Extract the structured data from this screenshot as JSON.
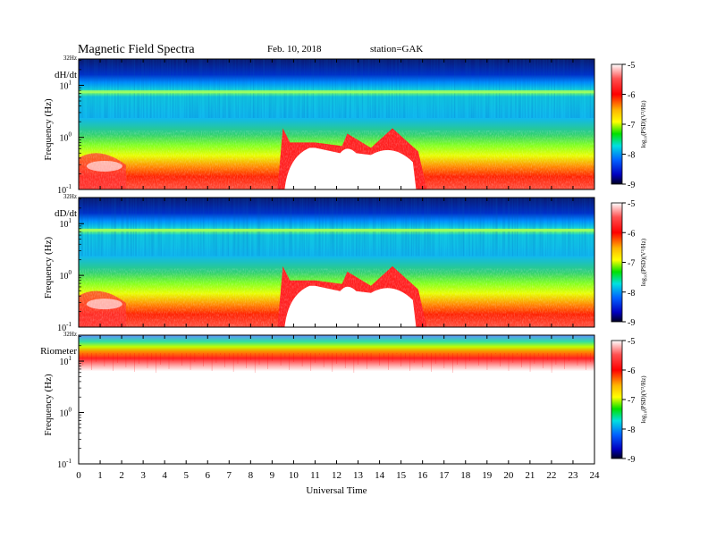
{
  "header": {
    "title": "Magnetic  Field  Spectra",
    "date": "Feb. 10, 2018",
    "station": "station=GAK"
  },
  "chart_data": [
    {
      "type": "heatmap",
      "panel_label": "dH/dt",
      "ylabel": "Frequency  (Hz)",
      "xlabel": "",
      "top_label": "32Hz",
      "yscale": "log",
      "ylim": [
        0.1,
        32
      ],
      "y_ticks": [
        {
          "base": "10",
          "exp": "1",
          "value": 10
        },
        {
          "base": "10",
          "exp": "0",
          "value": 1
        },
        {
          "base": "10",
          "exp": "-1",
          "value": 0.1
        }
      ],
      "xlim": [
        0,
        24
      ],
      "colorbar": {
        "label": "log₁₀(PSD)(V²/Hz)",
        "ticks": [
          -5,
          -6,
          -7,
          -8,
          -9
        ],
        "range": [
          -9,
          -5
        ]
      },
      "features": {
        "low_freq_event_start_h": 9.5,
        "low_freq_event_end_h": 16.2,
        "event_upper_freq_hz": 1.5,
        "bright_line_freq_hz": 7.5
      }
    },
    {
      "type": "heatmap",
      "panel_label": "dD/dt",
      "ylabel": "Frequency  (Hz)",
      "xlabel": "",
      "top_label": "32Hz",
      "yscale": "log",
      "ylim": [
        0.1,
        32
      ],
      "y_ticks": [
        {
          "base": "10",
          "exp": "1",
          "value": 10
        },
        {
          "base": "10",
          "exp": "0",
          "value": 1
        },
        {
          "base": "10",
          "exp": "-1",
          "value": 0.1
        }
      ],
      "xlim": [
        0,
        24
      ],
      "colorbar": {
        "label": "log₁₀(PSD)(V²/Hz)",
        "ticks": [
          -5,
          -6,
          -7,
          -8,
          -9
        ],
        "range": [
          -9,
          -5
        ]
      },
      "features": {
        "low_freq_event_start_h": 9.5,
        "low_freq_event_end_h": 16.2,
        "event_upper_freq_hz": 1.5,
        "bright_line_freq_hz": 7.5
      }
    },
    {
      "type": "heatmap",
      "panel_label": "Riometer",
      "ylabel": "Frequency  (Hz)",
      "xlabel": "Universal  Time",
      "top_label": "32Hz",
      "yscale": "log",
      "ylim": [
        0.1,
        32
      ],
      "y_ticks": [
        {
          "base": "10",
          "exp": "1",
          "value": 10
        },
        {
          "base": "10",
          "exp": "0",
          "value": 1
        },
        {
          "base": "10",
          "exp": "-1",
          "value": 0.1
        }
      ],
      "xlim": [
        0,
        24
      ],
      "x_ticks": [
        "0",
        "1",
        "2",
        "3",
        "4",
        "5",
        "6",
        "7",
        "8",
        "9",
        "10",
        "11",
        "12",
        "13",
        "14",
        "15",
        "16",
        "17",
        "18",
        "19",
        "20",
        "21",
        "22",
        "23",
        "24"
      ],
      "colorbar": {
        "label": "log₁₀(PSD)(V²/Hz)",
        "ticks": [
          -5,
          -6,
          -7,
          -8,
          -9
        ],
        "range": [
          -9,
          -5
        ]
      },
      "features": {
        "signal_min_freq_hz": 5
      }
    }
  ]
}
